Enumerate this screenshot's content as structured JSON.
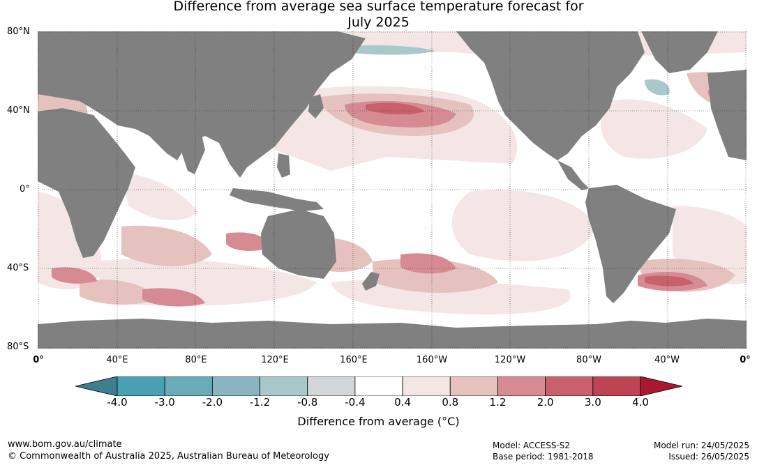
{
  "title": {
    "line1": "Difference from average sea surface temperature forecast for",
    "line2": "July 2025"
  },
  "lat_labels": [
    "80°N",
    "40°N",
    "0°",
    "40°S",
    "80°S"
  ],
  "lon_labels": [
    "0°",
    "40°E",
    "80°E",
    "120°E",
    "160°E",
    "160°W",
    "120°W",
    "80°W",
    "40°W",
    "0°"
  ],
  "legend": {
    "ticks": [
      "-4.0",
      "-3.0",
      "-2.0",
      "-1.2",
      "-0.8",
      "-0.4",
      "0.4",
      "0.8",
      "1.2",
      "2.0",
      "3.0",
      "4.0"
    ],
    "colors": [
      "#3d7f8d",
      "#4aa0b3",
      "#68acba",
      "#89b5c1",
      "#a9c8cc",
      "#d2d6d9",
      "#ffffff",
      "#f3e6e5",
      "#e6c2bf",
      "#d68b93",
      "#c8616c",
      "#be4454",
      "#a9182f"
    ],
    "label": "Difference from average (°C)"
  },
  "colors": {
    "land": "#808080",
    "ocean_neutral": "#ffffff",
    "anomaly_light": "#f3e6e5",
    "anomaly_medium": "#e6c2bf",
    "anomaly_strong": "#d68b93",
    "anomaly_very_strong": "#c8616c",
    "anomaly_cold": "#a9c8cc"
  },
  "footer": {
    "url": "www.bom.gov.au/climate",
    "copyright": "© Commonwealth of Australia 2025, Australian Bureau of Meteorology",
    "model": "Model: ACCESS-S2",
    "base_period": "Base period: 1981-2018",
    "model_run": "Model run: 24/05/2025",
    "issued": "Issued: 26/05/2025"
  }
}
